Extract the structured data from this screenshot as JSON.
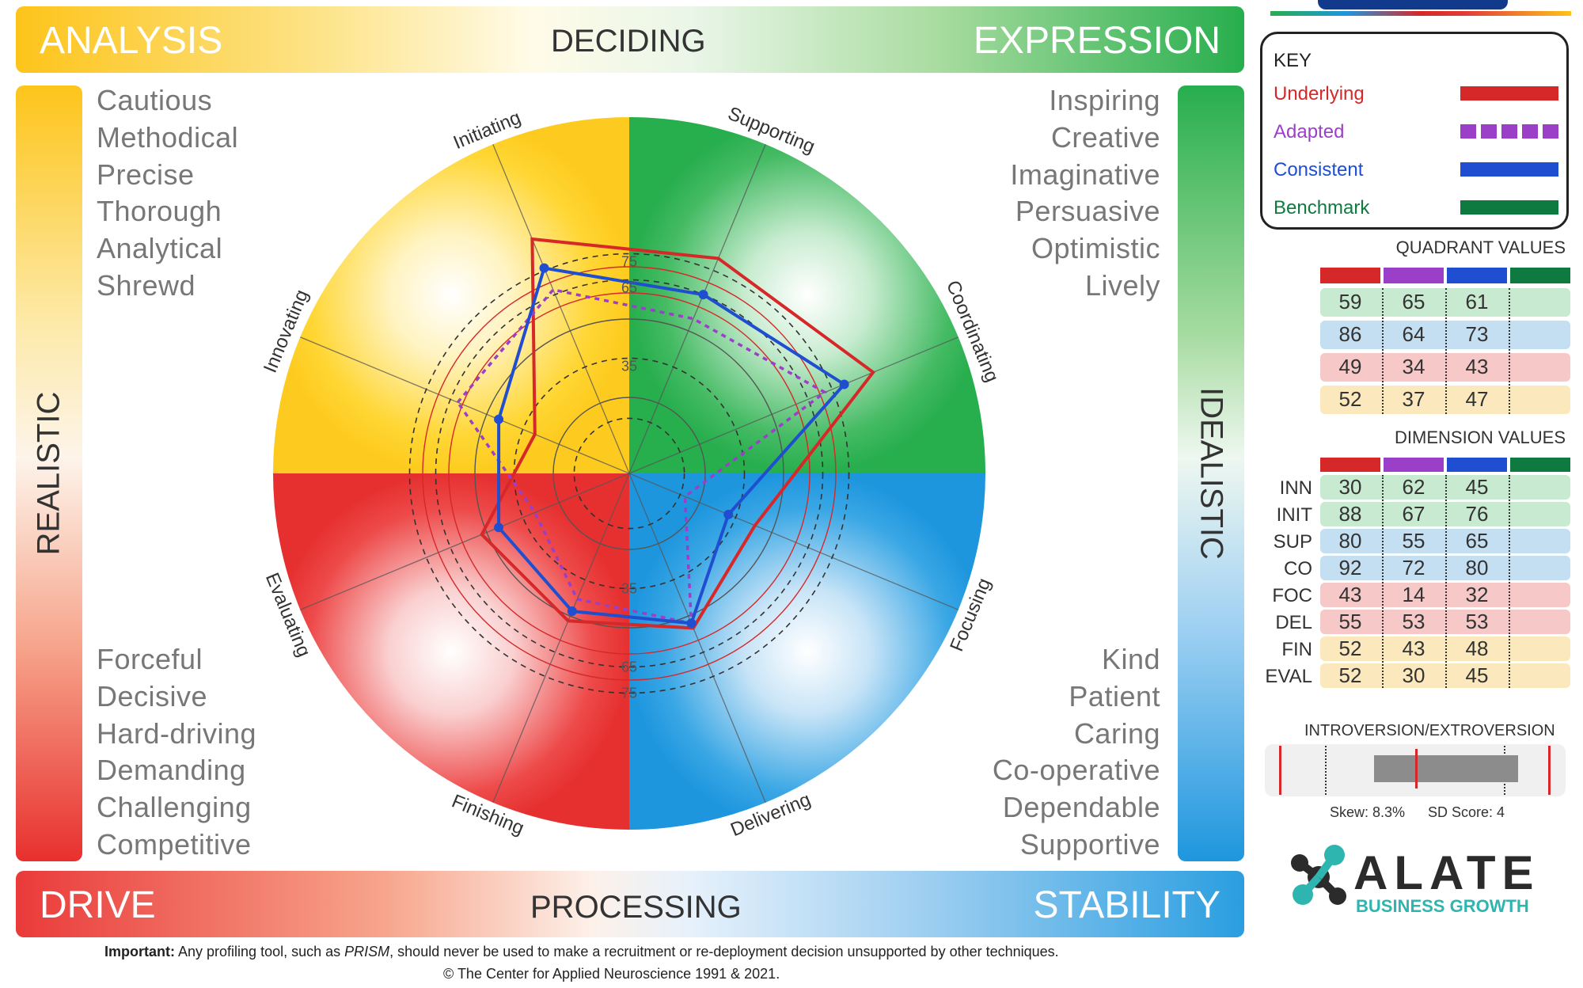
{
  "top_bar": {
    "left": "ANALYSIS",
    "center": "DECIDING",
    "right": "EXPRESSION"
  },
  "bottom_bar": {
    "left": "DRIVE",
    "center": "PROCESSING",
    "right": "STABILITY"
  },
  "side_left": "REALISTIC",
  "side_right": "IDEALISTIC",
  "words": {
    "top_left": [
      "Cautious",
      "Methodical",
      "Precise",
      "Thorough",
      "Analytical",
      "Shrewd"
    ],
    "top_right": [
      "Inspiring",
      "Creative",
      "Imaginative",
      "Persuasive",
      "Optimistic",
      "Lively"
    ],
    "bottom_left": [
      "Forceful",
      "Decisive",
      "Hard-driving",
      "Demanding",
      "Challenging",
      "Competitive"
    ],
    "bottom_right": [
      "Kind",
      "Patient",
      "Caring",
      "Co-operative",
      "Dependable",
      "Supportive"
    ]
  },
  "key": {
    "title": "KEY",
    "items": [
      {
        "label": "Underlying",
        "color": "#d62828"
      },
      {
        "label": "Adapted",
        "color": "#9b3fc8"
      },
      {
        "label": "Consistent",
        "color": "#1f4fd0"
      },
      {
        "label": "Benchmark",
        "color": "#0f7a40"
      }
    ]
  },
  "quadrant_values": {
    "title": "QUADRANT VALUES",
    "rows": [
      {
        "bg": "#c8ead0",
        "values": [
          "59",
          "65",
          "61"
        ]
      },
      {
        "bg": "#c5dff2",
        "values": [
          "86",
          "64",
          "73"
        ]
      },
      {
        "bg": "#f6c8c8",
        "values": [
          "49",
          "34",
          "43"
        ]
      },
      {
        "bg": "#fbe9bd",
        "values": [
          "52",
          "37",
          "47"
        ]
      }
    ]
  },
  "dimension_values": {
    "title": "DIMENSION VALUES",
    "rows": [
      {
        "label": "INN",
        "bg": "#c8ead0",
        "values": [
          "30",
          "62",
          "45"
        ]
      },
      {
        "label": "INIT",
        "bg": "#c8ead0",
        "values": [
          "88",
          "67",
          "76"
        ]
      },
      {
        "label": "SUP",
        "bg": "#c5dff2",
        "values": [
          "80",
          "55",
          "65"
        ]
      },
      {
        "label": "CO",
        "bg": "#c5dff2",
        "values": [
          "92",
          "72",
          "80"
        ]
      },
      {
        "label": "FOC",
        "bg": "#f6c8c8",
        "values": [
          "43",
          "14",
          "32"
        ]
      },
      {
        "label": "DEL",
        "bg": "#f6c8c8",
        "values": [
          "55",
          "53",
          "53"
        ]
      },
      {
        "label": "FIN",
        "bg": "#fbe9bd",
        "values": [
          "52",
          "43",
          "48"
        ]
      },
      {
        "label": "EVAL",
        "bg": "#fbe9bd",
        "values": [
          "52",
          "30",
          "45"
        ]
      }
    ]
  },
  "introversion": {
    "title": "INTROVERSION/EXTROVERSION",
    "skew": "Skew: 8.3%",
    "sd": "SD Score: 4"
  },
  "logo": {
    "main": "ALATE",
    "sub": "BUSINESS GROWTH"
  },
  "footer": {
    "important_label": "Important:",
    "line1_a": "Any profiling tool, such as",
    "line1_b": "PRISM",
    "line1_c": ", should never be used to make a recruitment or re-deployment decision unsupported by other techniques.",
    "line2": "© The Center for Applied Neuroscience 1991 & 2021."
  },
  "chart_data": {
    "type": "radar",
    "axes": [
      "Innovating",
      "Initiating",
      "Supporting",
      "Coordinating",
      "Focusing",
      "Delivering",
      "Finishing",
      "Evaluating"
    ],
    "rings": [
      "35",
      "65",
      "75"
    ],
    "series": [
      {
        "name": "Underlying",
        "color": "#d62828",
        "values": [
          30,
          88,
          80,
          92,
          43,
          55,
          52,
          52
        ]
      },
      {
        "name": "Adapted",
        "color": "#9b3fc8",
        "values": [
          62,
          67,
          55,
          72,
          14,
          53,
          43,
          30
        ]
      },
      {
        "name": "Consistent",
        "color": "#1f4fd0",
        "values": [
          45,
          76,
          65,
          80,
          32,
          53,
          48,
          45
        ]
      }
    ],
    "quadrant_colors": {
      "top_left": "#ffd52a",
      "top_right": "#2eb55a",
      "bottom_right": "#2a9ee0",
      "bottom_left": "#ea3a3a"
    }
  }
}
